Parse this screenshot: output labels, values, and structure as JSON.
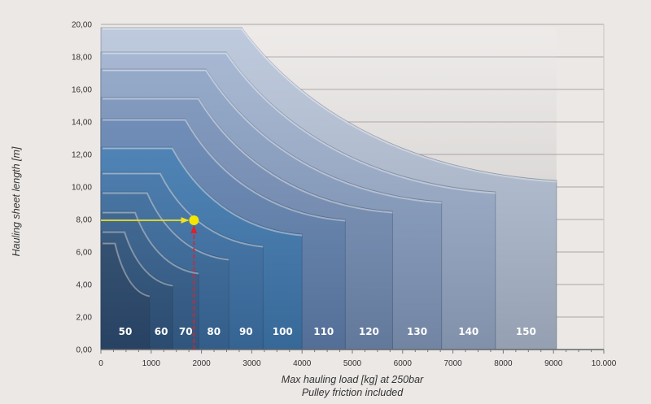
{
  "chart_data": {
    "type": "area",
    "title": "",
    "xlabel": "Max hauling load [kg] at 250bar",
    "xlabel_line2": "Pulley friction included",
    "ylabel": "Hauling sheet length [m]",
    "xlim": [
      0,
      10000
    ],
    "ylim": [
      0,
      20
    ],
    "grid": "horizontal",
    "x_ticks": [
      0,
      1000,
      2000,
      3000,
      4000,
      5000,
      6000,
      7000,
      8000,
      9000,
      10000
    ],
    "x_tick_labels": [
      "0",
      "1000",
      "2000",
      "3000",
      "4000",
      "5000",
      "6000",
      "7000",
      "8000",
      "9000",
      "10.000"
    ],
    "y_ticks": [
      0,
      2,
      4,
      6,
      8,
      10,
      12,
      14,
      16,
      18,
      20
    ],
    "y_tick_labels": [
      "0,00",
      "2,00",
      "4,00",
      "6,00",
      "8,00",
      "10,00",
      "12,00",
      "14,00",
      "16,00",
      "18,00",
      "20,00"
    ],
    "series": [
      {
        "name": "50",
        "max_length": 6.6,
        "plateau_end_load": 280,
        "max_load": 970,
        "length_at_max_load": 3.35,
        "color": "#2f5077"
      },
      {
        "name": "60",
        "max_length": 7.3,
        "plateau_end_load": 470,
        "max_load": 1430,
        "length_at_max_load": 4.0,
        "color": "#345c88"
      },
      {
        "name": "70",
        "max_length": 8.5,
        "plateau_end_load": 680,
        "max_load": 1945,
        "length_at_max_load": 4.75,
        "color": "#3a6899"
      },
      {
        "name": "80",
        "max_length": 9.7,
        "plateau_end_load": 920,
        "max_load": 2545,
        "length_at_max_load": 5.6,
        "color": "#3e72a8"
      },
      {
        "name": "90",
        "max_length": 10.9,
        "plateau_end_load": 1180,
        "max_load": 3225,
        "length_at_max_load": 6.4,
        "color": "#4179b2"
      },
      {
        "name": "100",
        "max_length": 12.45,
        "plateau_end_load": 1420,
        "max_load": 4000,
        "length_at_max_load": 7.1,
        "color": "#427fb9"
      },
      {
        "name": "110",
        "max_length": 14.2,
        "plateau_end_load": 1680,
        "max_load": 4860,
        "length_at_max_load": 8.0,
        "color": "#6587b8"
      },
      {
        "name": "120",
        "max_length": 15.5,
        "plateau_end_load": 1940,
        "max_load": 5800,
        "length_at_max_load": 8.5,
        "color": "#7893bd"
      },
      {
        "name": "130",
        "max_length": 17.25,
        "plateau_end_load": 2090,
        "max_load": 6775,
        "length_at_max_load": 9.1,
        "color": "#8aa1c6"
      },
      {
        "name": "140",
        "max_length": 18.3,
        "plateau_end_load": 2490,
        "max_load": 7845,
        "length_at_max_load": 9.7,
        "color": "#9db0cf"
      },
      {
        "name": "150",
        "max_length": 19.8,
        "plateau_end_load": 2800,
        "max_load": 9060,
        "length_at_max_load": 10.4,
        "color": "#b5c2d8"
      }
    ],
    "example_point": {
      "load": 1850,
      "length": 7.95,
      "point_color": "#f5e600",
      "horizontal_arrow_color": "#f0e020",
      "vertical_arrow_color": "#e0202a"
    }
  }
}
